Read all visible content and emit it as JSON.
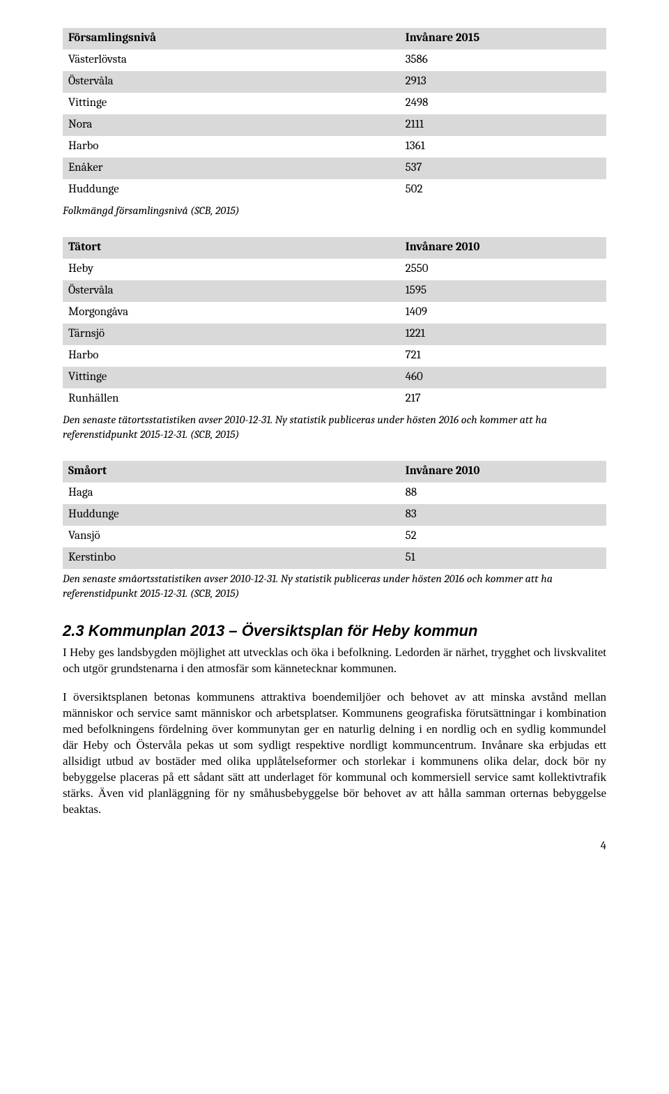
{
  "tables": {
    "forsamling": {
      "header_left": "Församlingsnivå",
      "header_right": "Invånare 2015",
      "rows": [
        {
          "name": "Västerlövsta",
          "value": "3586"
        },
        {
          "name": "Östervåla",
          "value": "2913"
        },
        {
          "name": "Vittinge",
          "value": "2498"
        },
        {
          "name": "Nora",
          "value": "2111"
        },
        {
          "name": "Harbo",
          "value": "1361"
        },
        {
          "name": "Enåker",
          "value": "537"
        },
        {
          "name": "Huddunge",
          "value": "502"
        }
      ],
      "caption": "Folkmängd församlingsnivå (SCB, 2015)"
    },
    "tatort": {
      "header_left": "Tätort",
      "header_right": "Invånare 2010",
      "rows": [
        {
          "name": "Heby",
          "value": "2550"
        },
        {
          "name": "Östervåla",
          "value": "1595"
        },
        {
          "name": "Morgongåva",
          "value": "1409"
        },
        {
          "name": "Tärnsjö",
          "value": "1221"
        },
        {
          "name": "Harbo",
          "value": "721"
        },
        {
          "name": "Vittinge",
          "value": "460"
        },
        {
          "name": "Runhällen",
          "value": "217"
        }
      ],
      "caption": "Den senaste tätortsstatistiken avser 2010-12-31. Ny statistik publiceras under hösten 2016 och kommer att ha referenstidpunkt 2015-12-31. (SCB, 2015)"
    },
    "smaort": {
      "header_left": "Småort",
      "header_right": "Invånare 2010",
      "rows": [
        {
          "name": "Haga",
          "value": "88"
        },
        {
          "name": "Huddunge",
          "value": "83"
        },
        {
          "name": "Vansjö",
          "value": "52"
        },
        {
          "name": "Kerstinbo",
          "value": "51"
        }
      ],
      "caption": "Den senaste småortsstatistiken avser 2010-12-31. Ny statistik publiceras under hösten 2016 och kommer att ha referenstidpunkt 2015-12-31. (SCB, 2015)"
    }
  },
  "section": {
    "heading": "2.3 Kommunplan 2013 – Översiktsplan för Heby kommun",
    "p1": "I Heby ges landsbygden möjlighet att utvecklas och öka i befolkning. Ledorden är närhet, trygghet och livskvalitet och utgör grundstenarna i den atmosfär som kännetecknar kommunen.",
    "p2": "I översiktsplanen betonas kommunens attraktiva boendemiljöer och behovet av att minska avstånd mellan människor och service samt människor och arbetsplatser. Kommunens geografiska förutsättningar i kombination med befolkningens fördelning över kommunytan ger en naturlig delning i en nordlig och en sydlig kommundel där Heby och Östervåla pekas ut som sydligt respektive nordligt kommuncentrum. Invånare ska erbjudas ett allsidigt utbud av bostäder med olika upplåtelseformer och storlekar i kommunens olika delar, dock bör ny bebyggelse placeras på ett sådant sätt att underlaget för kommunal och kommersiell service samt kollektivtrafik stärks. Även vid planläggning för ny småhusbebyggelse bör behovet av att hålla samman orternas bebyggelse beaktas."
  },
  "page_number": "4",
  "colors": {
    "stripe": "#d9d9d9",
    "background": "#ffffff",
    "text": "#000000"
  }
}
